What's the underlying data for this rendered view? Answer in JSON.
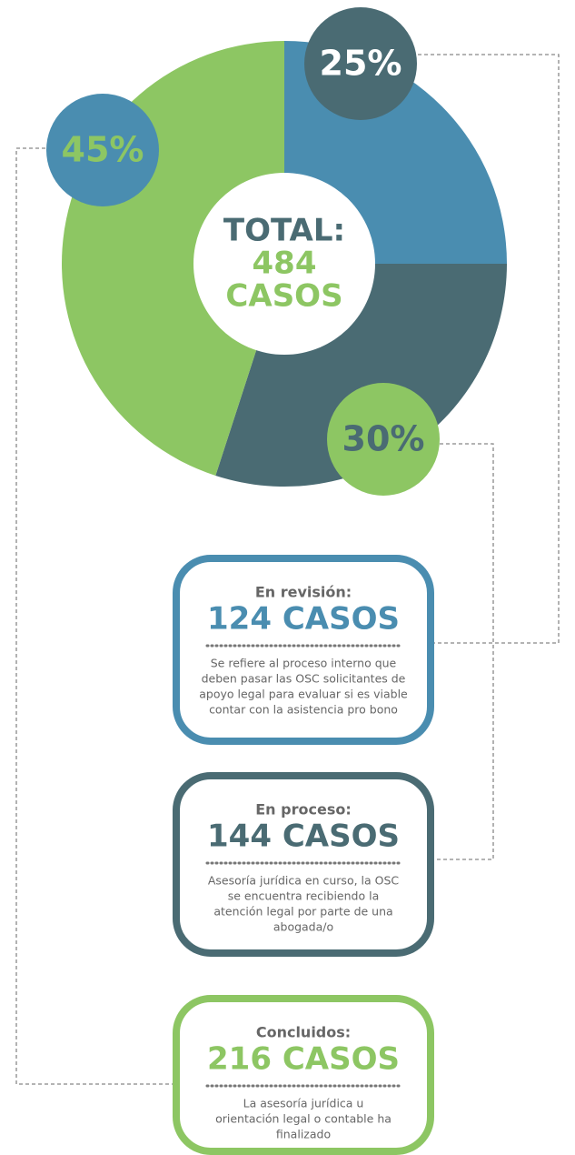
{
  "chart_data": {
    "type": "pie",
    "values": [
      25,
      30,
      45
    ],
    "value_labels": [
      "25%",
      "30%",
      "45%"
    ],
    "colors": [
      "#4a8db0",
      "#4a6b73",
      "#8dc663"
    ],
    "label_fills": [
      "#4a6b73",
      "#8dc663",
      "#4a8db0"
    ],
    "label_text_colors": [
      "#ffffff",
      "#4a6b73",
      "#8dc663"
    ],
    "center_text": [
      "TOTAL:",
      "484",
      "CASOS"
    ]
  },
  "cards": [
    {
      "title": "En revisión:",
      "count": "124 CASOS",
      "color": "#4a8db0",
      "lines": [
        "Se refiere al proceso interno que",
        "deben pasar las OSC solicitantes de",
        "apoyo legal para evaluar si es viable",
        "contar con la asistencia pro bono"
      ]
    },
    {
      "title": "En proceso:",
      "count": "144 CASOS",
      "color": "#4a6b73",
      "lines": [
        "Asesoría jurídica en curso, la OSC",
        "se encuentra recibiendo la",
        "atención legal por parte de una",
        "abogada/o"
      ]
    },
    {
      "title": "Concluidos:",
      "count": "216 CASOS",
      "color": "#8dc663",
      "lines": [
        "La asesoría jurídica u",
        "orientación legal o contable ha",
        "finalizado"
      ]
    }
  ]
}
